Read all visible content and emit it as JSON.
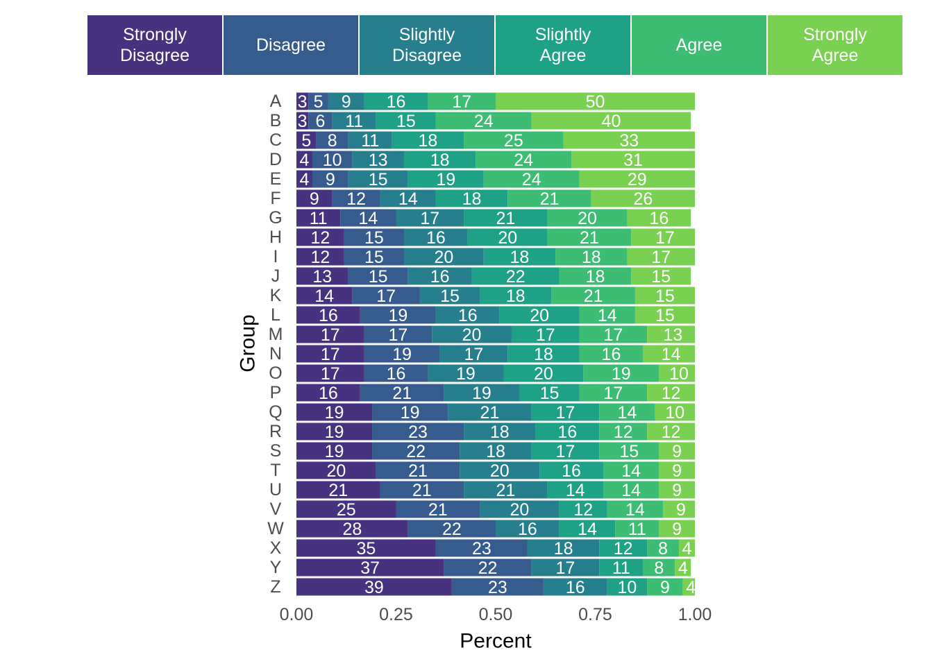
{
  "chart_data": {
    "type": "stacked_bar_horizontal",
    "x_label": "Percent",
    "y_label": "Group",
    "categories": [
      "A",
      "B",
      "C",
      "D",
      "E",
      "F",
      "G",
      "H",
      "I",
      "J",
      "K",
      "L",
      "M",
      "N",
      "O",
      "P",
      "Q",
      "R",
      "S",
      "T",
      "U",
      "V",
      "W",
      "X",
      "Y",
      "Z"
    ],
    "xlim": [
      0,
      1
    ],
    "xticks": [
      {
        "value": 0,
        "label": "0.00"
      },
      0.25,
      {
        "value": 0.5,
        "label": "0.50"
      },
      0.75,
      {
        "value": 1,
        "label": "1.00"
      }
    ],
    "grid": false,
    "legend_position": "top",
    "series": [
      {
        "name": "Strongly Disagree",
        "color": "#46327E",
        "values": [
          0.03,
          0.03,
          0.05,
          0.04,
          0.04,
          0.09,
          0.11,
          0.12,
          0.12,
          0.13,
          0.14,
          0.16,
          0.17,
          0.17,
          0.17,
          0.16,
          0.19,
          0.19,
          0.19,
          0.2,
          0.21,
          0.25,
          0.28,
          0.35,
          0.37,
          0.39
        ],
        "value_labels": [
          "3",
          "3",
          "5",
          "4",
          "4",
          "9",
          "11",
          "12",
          "12",
          "13",
          "14",
          "16",
          "17",
          "17",
          "17",
          "16",
          "19",
          "19",
          "19",
          "20",
          "21",
          "25",
          "28",
          "35",
          "37",
          "39"
        ]
      },
      {
        "name": "Disagree",
        "color": "#365C8D",
        "values": [
          0.05,
          0.06,
          0.08,
          0.1,
          0.09,
          0.12,
          0.14,
          0.15,
          0.15,
          0.15,
          0.17,
          0.19,
          0.17,
          0.19,
          0.16,
          0.21,
          0.19,
          0.23,
          0.22,
          0.21,
          0.21,
          0.21,
          0.22,
          0.23,
          0.22,
          0.23
        ],
        "value_labels": [
          "5",
          "6",
          "8",
          "10",
          "9",
          "12",
          "14",
          "15",
          "15",
          "15",
          "17",
          "19",
          "17",
          "19",
          "16",
          "21",
          "19",
          "23",
          "22",
          "21",
          "21",
          "21",
          "22",
          "23",
          "22",
          "23"
        ]
      },
      {
        "name": "Slightly Disagree",
        "color": "#277F8E",
        "values": [
          0.09,
          0.11,
          0.11,
          0.13,
          0.15,
          0.14,
          0.17,
          0.16,
          0.2,
          0.16,
          0.15,
          0.16,
          0.2,
          0.17,
          0.19,
          0.19,
          0.21,
          0.18,
          0.18,
          0.2,
          0.21,
          0.2,
          0.16,
          0.18,
          0.17,
          0.16
        ],
        "value_labels": [
          "9",
          "11",
          "11",
          "13",
          "15",
          "14",
          "17",
          "16",
          "20",
          "16",
          "15",
          "16",
          "20",
          "17",
          "19",
          "19",
          "21",
          "18",
          "18",
          "20",
          "21",
          "20",
          "16",
          "18",
          "17",
          "16"
        ]
      },
      {
        "name": "Slightly Agree",
        "color": "#1FA187",
        "values": [
          0.16,
          0.15,
          0.18,
          0.18,
          0.19,
          0.18,
          0.21,
          0.2,
          0.18,
          0.22,
          0.18,
          0.2,
          0.17,
          0.18,
          0.2,
          0.15,
          0.17,
          0.16,
          0.17,
          0.16,
          0.14,
          0.12,
          0.14,
          0.12,
          0.11,
          0.1
        ],
        "value_labels": [
          "16",
          "15",
          "18",
          "18",
          "19",
          "18",
          "21",
          "20",
          "18",
          "22",
          "18",
          "20",
          "17",
          "18",
          "20",
          "15",
          "17",
          "16",
          "17",
          "16",
          "14",
          "12",
          "14",
          "12",
          "11",
          "10"
        ]
      },
      {
        "name": "Agree",
        "color": "#3DBC74",
        "values": [
          0.17,
          0.24,
          0.25,
          0.24,
          0.24,
          0.21,
          0.2,
          0.21,
          0.18,
          0.18,
          0.21,
          0.14,
          0.17,
          0.16,
          0.19,
          0.17,
          0.14,
          0.12,
          0.15,
          0.14,
          0.14,
          0.14,
          0.11,
          0.08,
          0.08,
          0.09
        ],
        "value_labels": [
          "17",
          "24",
          "25",
          "24",
          "24",
          "21",
          "20",
          "21",
          "18",
          "18",
          "21",
          "14",
          "17",
          "16",
          "19",
          "17",
          "14",
          "12",
          "15",
          "14",
          "14",
          "14",
          "11",
          "8",
          "8",
          "9"
        ]
      },
      {
        "name": "Strongly Agree",
        "color": "#7AD151",
        "values": [
          0.5,
          0.4,
          0.33,
          0.31,
          0.29,
          0.26,
          0.16,
          0.17,
          0.17,
          0.15,
          0.15,
          0.15,
          0.13,
          0.14,
          0.1,
          0.12,
          0.1,
          0.12,
          0.09,
          0.09,
          0.09,
          0.09,
          0.09,
          0.04,
          0.04,
          0.04
        ],
        "value_labels": [
          "50",
          "40",
          "33",
          "31",
          "29",
          "26",
          "16",
          "17",
          "17",
          "15",
          "15",
          "15",
          "13",
          "14",
          "10",
          "12",
          "10",
          "12",
          "9",
          "9",
          "9",
          "9",
          "9",
          "4",
          "4",
          "4"
        ]
      }
    ]
  }
}
